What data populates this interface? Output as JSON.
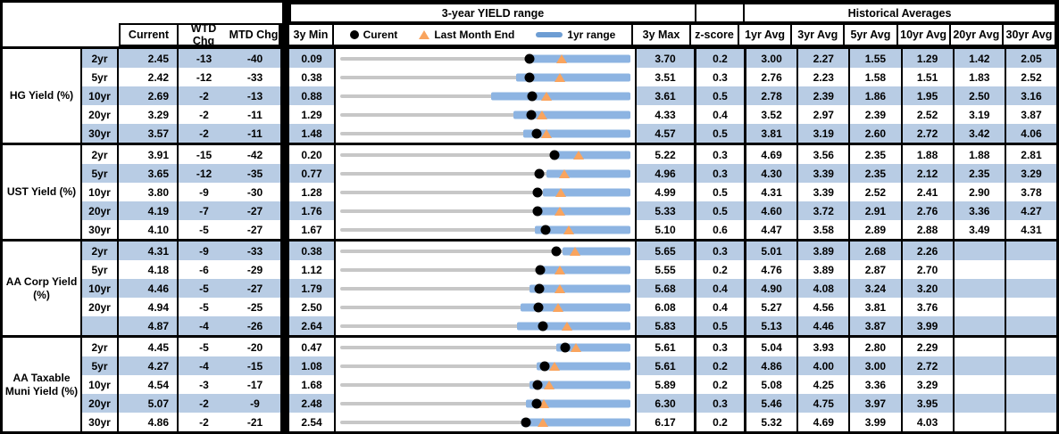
{
  "header": {
    "range_title": "3-year YIELD range",
    "hist_title": "Historical Averages",
    "col_current": "Current",
    "col_wtd": "WTD Chg",
    "col_mtd": "MTD Chg",
    "col_3ymin": "3y Min",
    "col_3ymax": "3y Max",
    "col_zscore": "z-score",
    "avg_cols": [
      "1yr Avg",
      "3yr Avg",
      "5yr Avg",
      "10yr Avg",
      "20yr Avg",
      "30yr Avg"
    ],
    "legend": {
      "current": "Curent",
      "last_month": "Last Month End",
      "range": "1yr range"
    }
  },
  "colors": {
    "stripe_blue": "#B8CCE4",
    "bar_blue": "#8DB4E2",
    "legend_bar_blue": "#6D9DD3",
    "triangle_orange": "#F9A45E",
    "track_gray": "#C7C7C7",
    "dot_black": "#000000",
    "border_black": "#000000"
  },
  "chart_data": {
    "type": "table",
    "title": "3-year YIELD range",
    "legend_entries": [
      "Curent",
      "Last Month End",
      "1yr range"
    ],
    "notes": "Each row: dot = current yield, triangle = last month end, blue bar = 1yr range, gray line spans 3y Min to 3y Max. range1y values estimated from bar pixels.",
    "columns": [
      "Current",
      "WTD Chg",
      "MTD Chg",
      "3y Min",
      "3y Max",
      "z-score",
      "1yr Avg",
      "3yr Avg",
      "5yr Avg",
      "10yr Avg",
      "20yr Avg",
      "30yr Avg"
    ],
    "groups": [
      {
        "label": "HG Yield (%)",
        "rows": [
          {
            "tenor": "2yr",
            "current": "2.45",
            "wtd": "-13",
            "mtd": "-40",
            "min": "0.09",
            "max": "3.70",
            "z": "0.2",
            "last_month_end": 2.85,
            "range1y_lo": 2.4,
            "range1y_hi": 3.7,
            "avgs": [
              "3.00",
              "2.27",
              "1.55",
              "1.29",
              "1.42",
              "2.05"
            ]
          },
          {
            "tenor": "5yr",
            "current": "2.42",
            "wtd": "-12",
            "mtd": "-33",
            "min": "0.38",
            "max": "3.51",
            "z": "0.3",
            "last_month_end": 2.75,
            "range1y_lo": 2.28,
            "range1y_hi": 3.51,
            "avgs": [
              "2.76",
              "2.23",
              "1.58",
              "1.51",
              "1.83",
              "2.52"
            ]
          },
          {
            "tenor": "10yr",
            "current": "2.69",
            "wtd": "-2",
            "mtd": "-13",
            "min": "0.88",
            "max": "3.61",
            "z": "0.5",
            "last_month_end": 2.82,
            "range1y_lo": 2.3,
            "range1y_hi": 3.61,
            "avgs": [
              "2.78",
              "2.39",
              "1.86",
              "1.95",
              "2.50",
              "3.16"
            ]
          },
          {
            "tenor": "20yr",
            "current": "3.29",
            "wtd": "-2",
            "mtd": "-11",
            "min": "1.29",
            "max": "4.33",
            "z": "0.4",
            "last_month_end": 3.4,
            "range1y_lo": 3.1,
            "range1y_hi": 4.33,
            "avgs": [
              "3.52",
              "2.97",
              "2.39",
              "2.52",
              "3.19",
              "3.87"
            ]
          },
          {
            "tenor": "30yr",
            "current": "3.57",
            "wtd": "-2",
            "mtd": "-11",
            "min": "1.48",
            "max": "4.57",
            "z": "0.5",
            "last_month_end": 3.68,
            "range1y_lo": 3.43,
            "range1y_hi": 4.57,
            "avgs": [
              "3.81",
              "3.19",
              "2.60",
              "2.72",
              "3.42",
              "4.06"
            ]
          }
        ]
      },
      {
        "label": "UST Yield (%)",
        "rows": [
          {
            "tenor": "2yr",
            "current": "3.91",
            "wtd": "-15",
            "mtd": "-42",
            "min": "0.20",
            "max": "5.22",
            "z": "0.3",
            "last_month_end": 4.33,
            "range1y_lo": 3.87,
            "range1y_hi": 5.22,
            "avgs": [
              "4.69",
              "3.56",
              "2.35",
              "1.88",
              "1.88",
              "2.81"
            ]
          },
          {
            "tenor": "5yr",
            "current": "3.65",
            "wtd": "-12",
            "mtd": "-35",
            "min": "0.77",
            "max": "4.96",
            "z": "0.3",
            "last_month_end": 4.0,
            "range1y_lo": 3.75,
            "range1y_hi": 4.96,
            "avgs": [
              "4.30",
              "3.39",
              "2.35",
              "2.12",
              "2.35",
              "3.29"
            ]
          },
          {
            "tenor": "10yr",
            "current": "3.80",
            "wtd": "-9",
            "mtd": "-30",
            "min": "1.28",
            "max": "4.99",
            "z": "0.5",
            "last_month_end": 4.1,
            "range1y_lo": 3.87,
            "range1y_hi": 4.99,
            "avgs": [
              "4.31",
              "3.39",
              "2.52",
              "2.41",
              "2.90",
              "3.78"
            ]
          },
          {
            "tenor": "20yr",
            "current": "4.19",
            "wtd": "-7",
            "mtd": "-27",
            "min": "1.76",
            "max": "5.33",
            "z": "0.5",
            "last_month_end": 4.46,
            "range1y_lo": 4.14,
            "range1y_hi": 5.33,
            "avgs": [
              "4.60",
              "3.72",
              "2.91",
              "2.76",
              "3.36",
              "4.27"
            ]
          },
          {
            "tenor": "30yr",
            "current": "4.10",
            "wtd": "-5",
            "mtd": "-27",
            "min": "1.67",
            "max": "5.10",
            "z": "0.6",
            "last_month_end": 4.37,
            "range1y_lo": 3.97,
            "range1y_hi": 5.1,
            "avgs": [
              "4.47",
              "3.58",
              "2.89",
              "2.88",
              "3.49",
              "4.31"
            ]
          }
        ]
      },
      {
        "label": "AA Corp Yield (%)",
        "rows": [
          {
            "tenor": "2yr",
            "current": "4.31",
            "wtd": "-9",
            "mtd": "-33",
            "min": "0.38",
            "max": "5.65",
            "z": "0.3",
            "last_month_end": 4.64,
            "range1y_lo": 4.41,
            "range1y_hi": 5.65,
            "avgs": [
              "5.01",
              "3.89",
              "2.68",
              "2.26",
              "",
              ""
            ]
          },
          {
            "tenor": "5yr",
            "current": "4.18",
            "wtd": "-6",
            "mtd": "-29",
            "min": "1.12",
            "max": "5.55",
            "z": "0.2",
            "last_month_end": 4.47,
            "range1y_lo": 4.14,
            "range1y_hi": 5.55,
            "avgs": [
              "4.76",
              "3.89",
              "2.87",
              "2.70",
              "",
              ""
            ]
          },
          {
            "tenor": "10yr",
            "current": "4.46",
            "wtd": "-5",
            "mtd": "-27",
            "min": "1.79",
            "max": "5.68",
            "z": "0.4",
            "last_month_end": 4.73,
            "range1y_lo": 4.33,
            "range1y_hi": 5.68,
            "avgs": [
              "4.90",
              "4.08",
              "3.24",
              "3.20",
              "",
              ""
            ]
          },
          {
            "tenor": "20yr",
            "current": "4.94",
            "wtd": "-5",
            "mtd": "-25",
            "min": "2.50",
            "max": "6.08",
            "z": "0.4",
            "last_month_end": 5.19,
            "range1y_lo": 4.73,
            "range1y_hi": 6.08,
            "avgs": [
              "5.27",
              "4.56",
              "3.81",
              "3.76",
              "",
              ""
            ]
          },
          {
            "tenor": "",
            "current": "4.87",
            "wtd": "-4",
            "mtd": "-26",
            "min": "2.64",
            "max": "5.83",
            "z": "0.5",
            "last_month_end": 5.13,
            "range1y_lo": 4.58,
            "range1y_hi": 5.83,
            "avgs": [
              "5.13",
              "4.46",
              "3.87",
              "3.99",
              "",
              ""
            ]
          }
        ]
      },
      {
        "label": "AA Taxable Muni Yield (%)",
        "rows": [
          {
            "tenor": "2yr",
            "current": "4.45",
            "wtd": "-5",
            "mtd": "-20",
            "min": "0.47",
            "max": "5.61",
            "z": "0.3",
            "last_month_end": 4.65,
            "range1y_lo": 4.29,
            "range1y_hi": 5.61,
            "avgs": [
              "5.04",
              "3.93",
              "2.80",
              "2.29",
              "",
              ""
            ]
          },
          {
            "tenor": "5yr",
            "current": "4.27",
            "wtd": "-4",
            "mtd": "-15",
            "min": "1.08",
            "max": "5.61",
            "z": "0.2",
            "last_month_end": 4.42,
            "range1y_lo": 4.14,
            "range1y_hi": 5.61,
            "avgs": [
              "4.86",
              "4.00",
              "3.00",
              "2.72",
              "",
              ""
            ]
          },
          {
            "tenor": "10yr",
            "current": "4.54",
            "wtd": "-3",
            "mtd": "-17",
            "min": "1.68",
            "max": "5.89",
            "z": "0.2",
            "last_month_end": 4.71,
            "range1y_lo": 4.43,
            "range1y_hi": 5.89,
            "avgs": [
              "5.08",
              "4.25",
              "3.36",
              "3.29",
              "",
              ""
            ]
          },
          {
            "tenor": "20yr",
            "current": "5.07",
            "wtd": "-2",
            "mtd": "-9",
            "min": "2.48",
            "max": "6.30",
            "z": "0.3",
            "last_month_end": 5.16,
            "range1y_lo": 4.92,
            "range1y_hi": 6.3,
            "avgs": [
              "5.46",
              "4.75",
              "3.97",
              "3.95",
              "",
              ""
            ]
          },
          {
            "tenor": "30yr",
            "current": "4.86",
            "wtd": "-2",
            "mtd": "-21",
            "min": "2.54",
            "max": "6.17",
            "z": "0.2",
            "last_month_end": 5.07,
            "range1y_lo": 4.81,
            "range1y_hi": 6.17,
            "avgs": [
              "5.32",
              "4.69",
              "3.99",
              "4.03",
              "",
              ""
            ]
          }
        ]
      }
    ]
  }
}
